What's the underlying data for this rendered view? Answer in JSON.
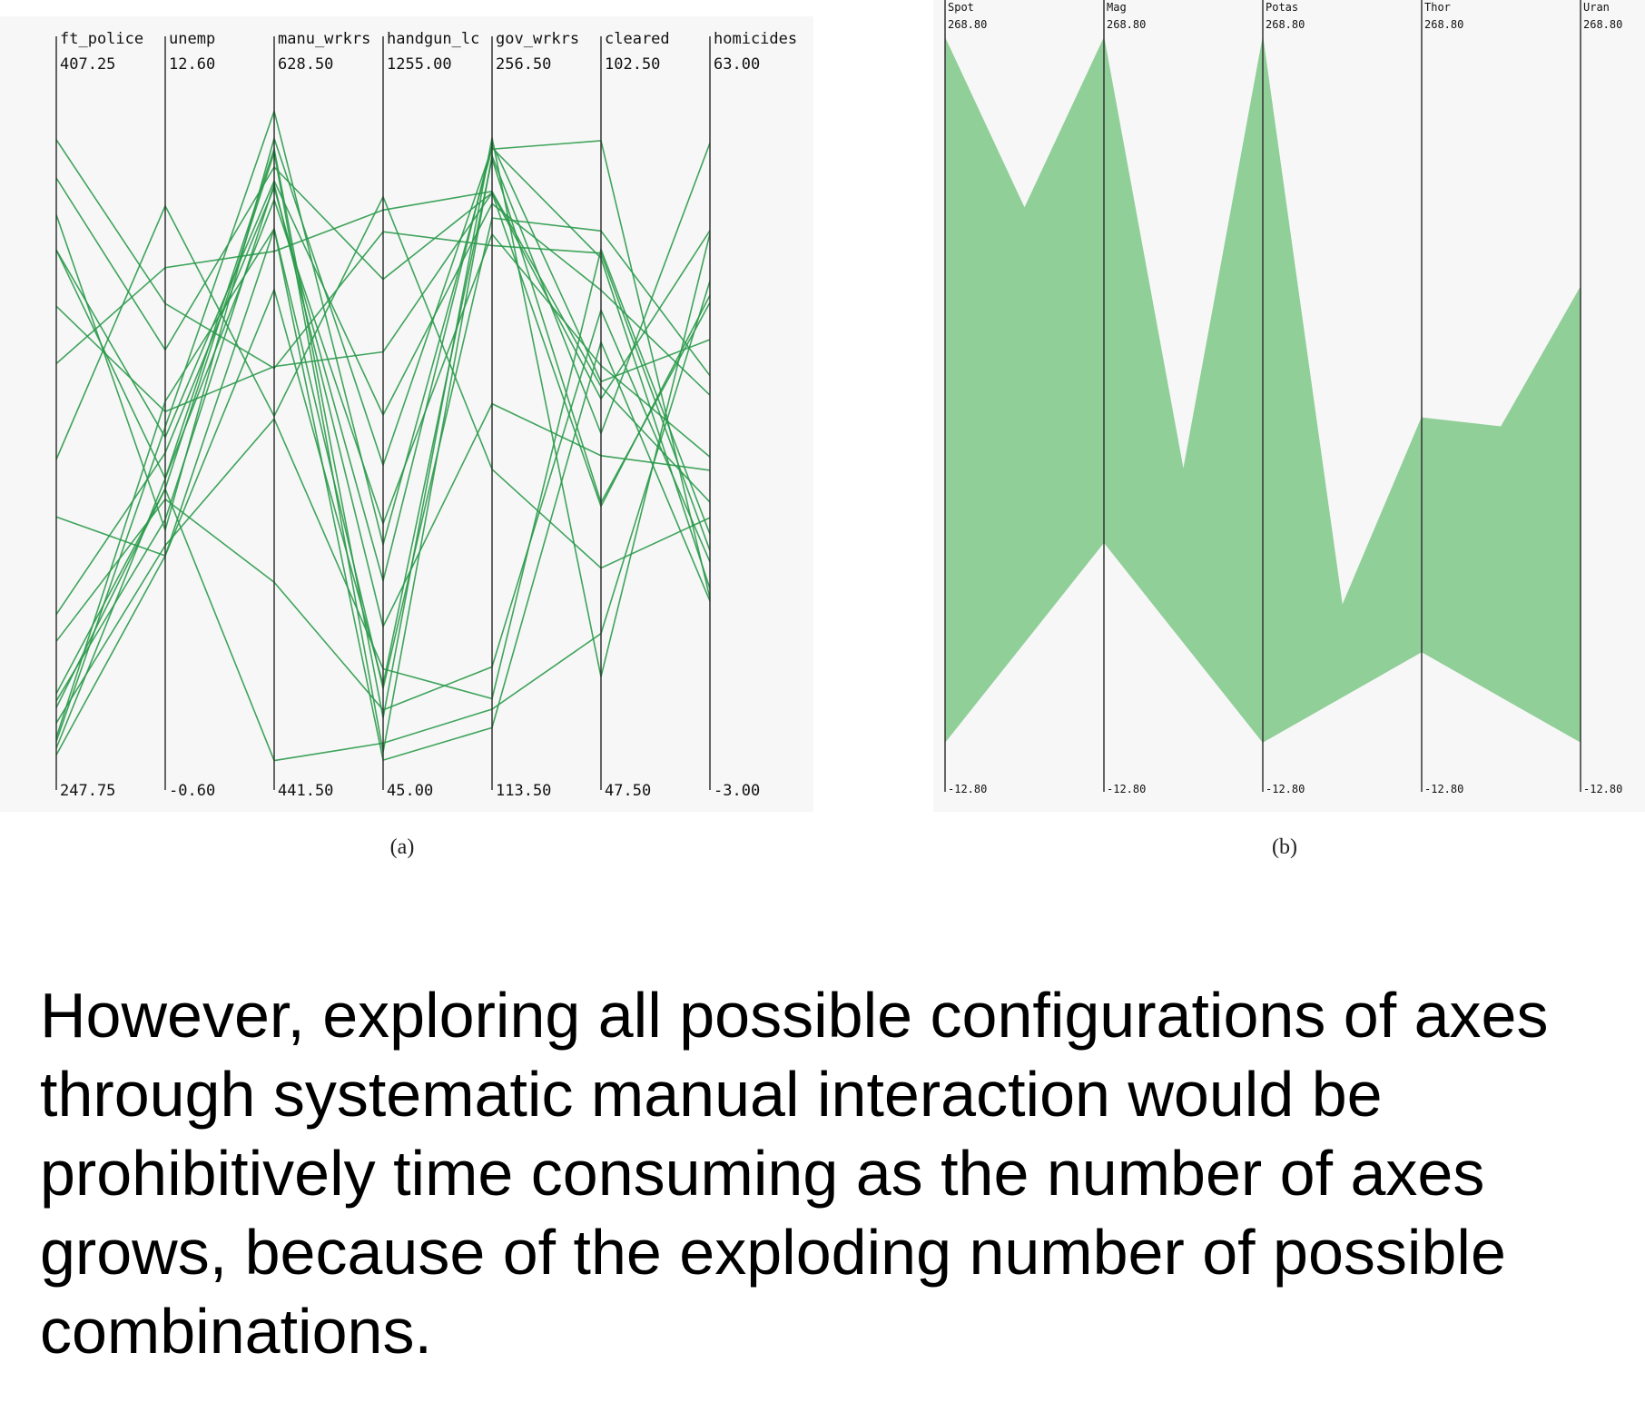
{
  "colors": {
    "line_a": "#2a9a4a",
    "fill_b": "#90cf98",
    "panel_bg": "#f7f7f7",
    "axis": "#333333"
  },
  "chart_data": [
    {
      "type": "parallel-coordinates",
      "panel_label": "(a)",
      "grid": false,
      "axes": [
        {
          "name": "ft_police",
          "max_label": "407.25",
          "min_label": "247.75",
          "max": 407.25,
          "min": 247.75
        },
        {
          "name": "unemp",
          "max_label": "12.60",
          "min_label": "-0.60",
          "max": 12.6,
          "min": -0.6
        },
        {
          "name": "manu_wrkrs",
          "max_label": "628.50",
          "min_label": "441.50",
          "max": 628.5,
          "min": 441.5
        },
        {
          "name": "handgun_lc",
          "max_label": "1255.00",
          "min_label": "45.00",
          "max": 1255.0,
          "min": 45.0
        },
        {
          "name": "gov_wrkrs",
          "max_label": "256.50",
          "min_label": "113.50",
          "max": 256.5,
          "min": 113.5
        },
        {
          "name": "cleared",
          "max_label": "102.50",
          "min_label": "47.50",
          "max": 102.5,
          "min": 47.5
        },
        {
          "name": "homicides",
          "max_label": "63.00",
          "min_label": "-3.00",
          "max": 63.0,
          "min": -3.0
        }
      ],
      "records": [
        [
          396.2,
          8.5,
          552.6,
          1007.2,
          224.3,
          89.5,
          18.5
        ],
        [
          387.2,
          7.6,
          608.0,
          922.5,
          235.4,
          77.7,
          49.6
        ],
        [
          378.6,
          4.1,
          615.9,
          591.3,
          244.9,
          89.1,
          14.8
        ],
        [
          370.3,
          5.9,
          604.2,
          680.8,
          233.1,
          86.5,
          33.6
        ],
        [
          370.3,
          5.1,
          599.0,
          487.2,
          226.7,
          80.4,
          27.6
        ],
        [
          357.1,
          6.4,
          553.1,
          793.1,
          235.4,
          69.0,
          43.3
        ],
        [
          343.6,
          9.2,
          584.8,
          1045.9,
          235.7,
          78.7,
          23.2
        ],
        [
          321.1,
          10.4,
          539.4,
          1069.5,
          177.2,
          64.0,
          21.7
        ],
        [
          307.6,
          3.6,
          574.3,
          200.6,
          242.6,
          69.3,
          42.6
        ],
        [
          284.7,
          5.6,
          602.4,
          385.3,
          245.8,
          79.1,
          39.0
        ],
        [
          262.8,
          4.9,
          444.6,
          96.1,
          126.7,
          58.7,
          44.7
        ],
        [
          278.4,
          4.7,
          493.7,
          155.3,
          135.6,
          84.9,
          17.4
        ],
        [
          259.2,
          3.8,
          538.7,
          228.5,
          128.9,
          89.8,
          20.1
        ],
        [
          255.8,
          6.6,
          591.0,
          65.9,
          122.8,
          82.3,
          13.6
        ],
        [
          253.3,
          5.1,
          613.0,
          141.3,
          247.0,
          55.2,
          49.3
        ],
        [
          251.7,
          3.6,
          591.0,
          193.6,
          230.1,
          91.3,
          35.5
        ],
        [
          264.4,
          4.3,
          603.3,
          303.9,
          191.0,
          73.1,
          26.3
        ],
        [
          266.1,
          4.9,
          612.0,
          80.1,
          243.2,
          74.9,
          58.1
        ],
        [
          254.9,
          6.1,
          623.4,
          449.9,
          244.6,
          98.6,
          13.9
        ]
      ]
    },
    {
      "type": "parallel-coordinates",
      "panel_label": "(b)",
      "grid": false,
      "axes": [
        {
          "name": "Spot",
          "max_label": "268.80",
          "min_label": "-12.80",
          "max": 268.8,
          "min": -12.8
        },
        {
          "name": "Mag",
          "max_label": "268.80",
          "min_label": "-12.80",
          "max": 268.8,
          "min": -12.8
        },
        {
          "name": "Potas",
          "max_label": "268.80",
          "min_label": "-12.80",
          "max": 268.8,
          "min": -12.8
        },
        {
          "name": "Thor",
          "max_label": "268.80",
          "min_label": "-12.80",
          "max": 268.8,
          "min": -12.8
        },
        {
          "name": "Uran",
          "max_label": "268.80",
          "min_label": "-12.80",
          "max": 268.8,
          "min": -12.8
        }
      ],
      "envelope": {
        "upper": [
          268.8,
          268.8,
          268.8,
          123.4,
          173.5
        ],
        "lower": [
          -0.7,
          75.8,
          -0.7,
          33.9,
          -0.7
        ]
      },
      "envelope_mid_peaks": [
        203.6,
        103.2,
        51.4,
        120.0
      ]
    }
  ],
  "caption": "However, exploring all possible configurations of axes through systematic manual interaction would be prohibitively time consuming as the number of axes grows, because of the exploding number of possible combinations."
}
